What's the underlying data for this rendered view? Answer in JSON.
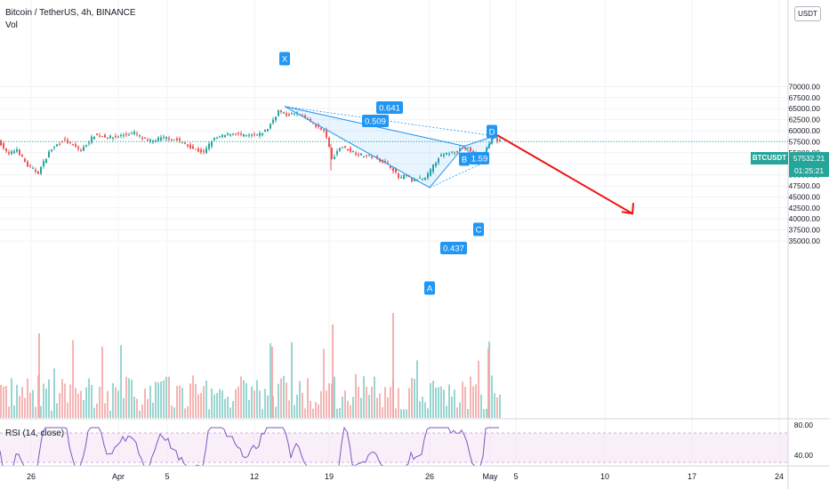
{
  "header": {
    "symbol_line": "Bitcoin / TetherUS, 4h, BINANCE",
    "volume_label": "Vol",
    "rsi_label": "RSI (14, close)",
    "currency": "USDT"
  },
  "price_tag": {
    "symbol": "BTCUSDT",
    "price": "57532.21",
    "countdown": "01:25:21",
    "color": "#26a69a"
  },
  "chart_data": {
    "type": "candlestick",
    "x_ticks": [
      "26",
      "Apr",
      "5",
      "12",
      "19",
      "26",
      "May",
      "5",
      "10",
      "17",
      "24"
    ],
    "y_ticks": [
      "35000.00",
      "37500.00",
      "40000.00",
      "42500.00",
      "45000.00",
      "47500.00",
      "50000.00",
      "52500.00",
      "55000.00",
      "57500.00",
      "60000.00",
      "62500.00",
      "65000.00",
      "67500.00",
      "70000.00"
    ],
    "ylim": [
      34000,
      71000
    ],
    "last_price": 57532.21,
    "rsi_ticks": [
      "80.00",
      "40.00"
    ],
    "harmonic_pattern": {
      "points": [
        {
          "label": "X",
          "price": 65500
        },
        {
          "label": "A",
          "price": 47100
        },
        {
          "label": "B",
          "price": 56500
        },
        {
          "label": "C",
          "price": 52200
        },
        {
          "label": "D",
          "price": 58800
        }
      ],
      "ratios": [
        "0.641",
        "0.509",
        "1.59",
        "0.437"
      ]
    },
    "projection": {
      "from_price": 59000,
      "to_price": 41200,
      "color": "#f01414"
    },
    "colors": {
      "up": "#26a69a",
      "down": "#ef5350",
      "pattern": "#2196f3",
      "rsi": "#7e57c2"
    }
  }
}
